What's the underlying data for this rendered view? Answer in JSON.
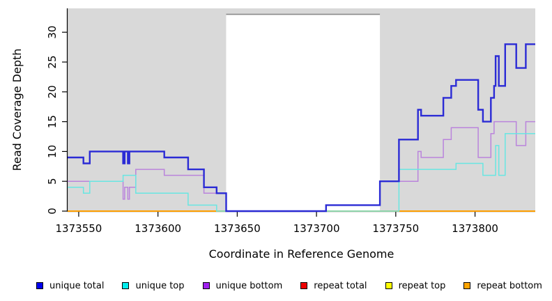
{
  "figure": {
    "kind": "coverage-plot"
  },
  "axes": {
    "x_label": "Coordinate in Reference Genome",
    "y_label": "Read Coverage Depth"
  },
  "legend": {
    "items": [
      {
        "label": "unique total",
        "color": "#0000ee"
      },
      {
        "label": "unique top",
        "color": "#00eeee"
      },
      {
        "label": "unique bottom",
        "color": "#a020f0"
      },
      {
        "label": "repeat total",
        "color": "#ee0000"
      },
      {
        "label": "repeat top",
        "color": "#ffff00"
      },
      {
        "label": "repeat bottom",
        "color": "#ffa500"
      }
    ]
  },
  "chart_data": {
    "type": "line",
    "subtype": "step",
    "title": "",
    "xlabel": "Coordinate in Reference Genome",
    "ylabel": "Read Coverage Depth",
    "xlim": [
      1373543,
      1373838
    ],
    "ylim": [
      0,
      34
    ],
    "xticks": [
      1373550,
      1373600,
      1373650,
      1373700,
      1373750,
      1373800
    ],
    "yticks": [
      0,
      5,
      10,
      15,
      20,
      25,
      30
    ],
    "grid": false,
    "legend_position": "bottom",
    "panel_background": "#d9d9d9",
    "masked_region": {
      "from": 1373643,
      "to": 1373740,
      "color": "#ffffff",
      "top_border_color": "#8a8a8a",
      "top_value": 33
    },
    "series": [
      {
        "name": "repeat total",
        "line_color": "#e00000",
        "line_width": 1.5,
        "steps": [
          [
            1373543,
            0
          ]
        ]
      },
      {
        "name": "repeat top",
        "line_color": "#ffff00",
        "line_width": 1.5,
        "steps": [
          [
            1373543,
            0
          ]
        ]
      },
      {
        "name": "repeat bottom",
        "line_color": "#ff9f00",
        "line_width": 2,
        "steps": [
          [
            1373543,
            0
          ]
        ]
      },
      {
        "name": "unique bottom",
        "line_color": "#ba84dc",
        "line_width": 1.5,
        "steps": [
          [
            1373543,
            5
          ],
          [
            1373578,
            2
          ],
          [
            1373579,
            4
          ],
          [
            1373581,
            2
          ],
          [
            1373582,
            4
          ],
          [
            1373586,
            7
          ],
          [
            1373604,
            6
          ],
          [
            1373629,
            3
          ],
          [
            1373643,
            0
          ],
          [
            1373706,
            1
          ],
          [
            1373740,
            5
          ],
          [
            1373764,
            10
          ],
          [
            1373766,
            9
          ],
          [
            1373780,
            12
          ],
          [
            1373785,
            14
          ],
          [
            1373802,
            9
          ],
          [
            1373810,
            13
          ],
          [
            1373812,
            15
          ],
          [
            1373826,
            11
          ],
          [
            1373832,
            15
          ]
        ]
      },
      {
        "name": "unique top",
        "line_color": "#68e6e2",
        "line_width": 1.5,
        "steps": [
          [
            1373543,
            4
          ],
          [
            1373553,
            3
          ],
          [
            1373557,
            5
          ],
          [
            1373578,
            6
          ],
          [
            1373586,
            3
          ],
          [
            1373619,
            1
          ],
          [
            1373637,
            0
          ],
          [
            1373752,
            7
          ],
          [
            1373788,
            8
          ],
          [
            1373805,
            6
          ],
          [
            1373813,
            11
          ],
          [
            1373815,
            6
          ],
          [
            1373819,
            13
          ]
        ]
      },
      {
        "name": "unique total",
        "line_color": "#2b2bd5",
        "line_width": 2.4,
        "steps": [
          [
            1373543,
            9
          ],
          [
            1373553,
            8
          ],
          [
            1373557,
            10
          ],
          [
            1373578,
            8
          ],
          [
            1373579,
            10
          ],
          [
            1373581,
            8
          ],
          [
            1373582,
            10
          ],
          [
            1373604,
            9
          ],
          [
            1373619,
            7
          ],
          [
            1373629,
            4
          ],
          [
            1373637,
            3
          ],
          [
            1373643,
            0
          ],
          [
            1373706,
            1
          ],
          [
            1373740,
            5
          ],
          [
            1373752,
            12
          ],
          [
            1373764,
            17
          ],
          [
            1373766,
            16
          ],
          [
            1373780,
            19
          ],
          [
            1373785,
            21
          ],
          [
            1373788,
            22
          ],
          [
            1373802,
            17
          ],
          [
            1373805,
            15
          ],
          [
            1373810,
            19
          ],
          [
            1373812,
            21
          ],
          [
            1373813,
            26
          ],
          [
            1373815,
            21
          ],
          [
            1373819,
            28
          ],
          [
            1373826,
            24
          ],
          [
            1373832,
            28
          ]
        ]
      }
    ]
  }
}
